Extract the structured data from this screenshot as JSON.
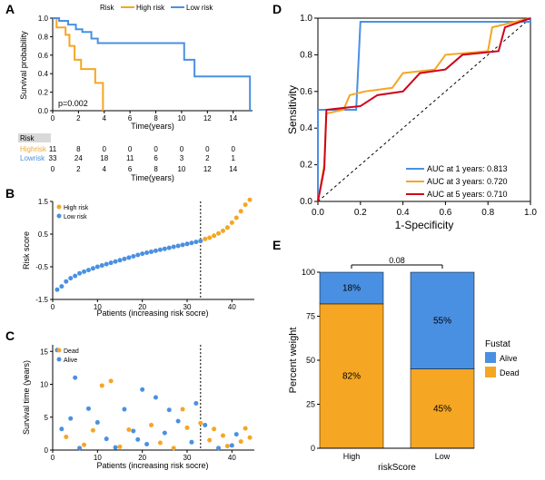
{
  "colors": {
    "high_risk": "#f5a623",
    "low_risk": "#4a90e2",
    "auc1": "#4a90e2",
    "auc3": "#f5a623",
    "auc5": "#d0021b",
    "alive": "#4a90e2",
    "dead": "#f5a623",
    "text": "#000000",
    "grid": "#bfbfbf"
  },
  "panelA": {
    "label": "A",
    "legend_title": "Risk",
    "legend_items": [
      {
        "label": "High risk",
        "color": "#f5a623"
      },
      {
        "label": "Low risk",
        "color": "#4a90e2"
      }
    ],
    "ylabel": "Survival probability",
    "xlabel": "Time(years)",
    "x_ticks": [
      0,
      2,
      4,
      6,
      8,
      10,
      12,
      14
    ],
    "y_ticks": [
      0.0,
      0.2,
      0.4,
      0.6,
      0.8,
      1.0
    ],
    "pvalue": "p=0.002",
    "high_risk_curve": [
      [
        0,
        1.0
      ],
      [
        0.3,
        0.9
      ],
      [
        1.0,
        0.82
      ],
      [
        1.3,
        0.7
      ],
      [
        1.7,
        0.55
      ],
      [
        2.2,
        0.45
      ],
      [
        3.2,
        0.45
      ],
      [
        3.3,
        0.3
      ],
      [
        3.8,
        0.3
      ],
      [
        3.9,
        0.0
      ]
    ],
    "low_risk_curve": [
      [
        0,
        1.0
      ],
      [
        0.5,
        0.97
      ],
      [
        1.2,
        0.93
      ],
      [
        1.8,
        0.88
      ],
      [
        2.3,
        0.85
      ],
      [
        3.0,
        0.78
      ],
      [
        3.5,
        0.73
      ],
      [
        5.0,
        0.73
      ],
      [
        6.0,
        0.73
      ],
      [
        8.0,
        0.73
      ],
      [
        9.0,
        0.73
      ],
      [
        10.0,
        0.73
      ],
      [
        10.2,
        0.55
      ],
      [
        11.0,
        0.37
      ],
      [
        14.0,
        0.37
      ],
      [
        15.0,
        0.37
      ],
      [
        15.3,
        0.0
      ]
    ],
    "risk_table": {
      "header": "Risk",
      "rows": [
        {
          "label": "Highrisk",
          "color": "#f5a623",
          "values": [
            11,
            8,
            0,
            0,
            0,
            0,
            0,
            0
          ]
        },
        {
          "label": "Lowrisk",
          "color": "#4a90e2",
          "values": [
            33,
            24,
            18,
            11,
            6,
            3,
            2,
            1
          ]
        }
      ],
      "time_row": [
        0,
        2,
        4,
        6,
        8,
        10,
        12,
        14
      ]
    }
  },
  "panelB": {
    "label": "B",
    "legend": [
      {
        "label": "High risk",
        "color": "#f5a623"
      },
      {
        "label": "Low risk",
        "color": "#4a90e2"
      }
    ],
    "ylabel": "Risk score",
    "xlabel": "Patients (increasing risk socre)",
    "x_ticks": [
      0,
      10,
      20,
      30,
      40
    ],
    "y_ticks": [
      -1.5,
      -0.5,
      0.5,
      1.5
    ],
    "cutoff": 33,
    "low_points": [
      [
        1,
        -1.2
      ],
      [
        2,
        -1.1
      ],
      [
        3,
        -0.95
      ],
      [
        4,
        -0.85
      ],
      [
        5,
        -0.78
      ],
      [
        6,
        -0.7
      ],
      [
        7,
        -0.65
      ],
      [
        8,
        -0.6
      ],
      [
        9,
        -0.55
      ],
      [
        10,
        -0.5
      ],
      [
        11,
        -0.46
      ],
      [
        12,
        -0.42
      ],
      [
        13,
        -0.38
      ],
      [
        14,
        -0.34
      ],
      [
        15,
        -0.3
      ],
      [
        16,
        -0.26
      ],
      [
        17,
        -0.22
      ],
      [
        18,
        -0.18
      ],
      [
        19,
        -0.14
      ],
      [
        20,
        -0.1
      ],
      [
        21,
        -0.07
      ],
      [
        22,
        -0.04
      ],
      [
        23,
        -0.01
      ],
      [
        24,
        0.02
      ],
      [
        25,
        0.05
      ],
      [
        26,
        0.08
      ],
      [
        27,
        0.11
      ],
      [
        28,
        0.14
      ],
      [
        29,
        0.17
      ],
      [
        30,
        0.2
      ],
      [
        31,
        0.23
      ],
      [
        32,
        0.26
      ],
      [
        33,
        0.29
      ]
    ],
    "high_points": [
      [
        34,
        0.35
      ],
      [
        35,
        0.39
      ],
      [
        36,
        0.45
      ],
      [
        37,
        0.52
      ],
      [
        38,
        0.6
      ],
      [
        39,
        0.7
      ],
      [
        40,
        0.85
      ],
      [
        41,
        1.0
      ],
      [
        42,
        1.2
      ],
      [
        43,
        1.4
      ],
      [
        44,
        1.55
      ]
    ]
  },
  "panelC": {
    "label": "C",
    "legend": [
      {
        "label": "Dead",
        "color": "#f5a623"
      },
      {
        "label": "Alive",
        "color": "#4a90e2"
      }
    ],
    "ylabel": "Survival time (years)",
    "xlabel": "Patients (increasing risk socre)",
    "x_ticks": [
      0,
      10,
      20,
      30,
      40
    ],
    "y_ticks": [
      0,
      5,
      10,
      15
    ],
    "cutoff": 33,
    "dead_points": [
      [
        3,
        2
      ],
      [
        7,
        0.8
      ],
      [
        9,
        3
      ],
      [
        11,
        9.8
      ],
      [
        13,
        10.5
      ],
      [
        15,
        0.5
      ],
      [
        17,
        3.1
      ],
      [
        22,
        3.8
      ],
      [
        24,
        1.1
      ],
      [
        27,
        0.3
      ],
      [
        29,
        6.2
      ],
      [
        30,
        3.4
      ],
      [
        33,
        4.1
      ],
      [
        35,
        1.5
      ],
      [
        36,
        3.2
      ],
      [
        38,
        2.2
      ],
      [
        39,
        0.6
      ],
      [
        42,
        1.3
      ],
      [
        43,
        3.3
      ],
      [
        44,
        1.9
      ]
    ],
    "alive_points": [
      [
        1,
        15.2
      ],
      [
        2,
        3.2
      ],
      [
        4,
        4.8
      ],
      [
        5,
        11
      ],
      [
        6,
        0.3
      ],
      [
        8,
        6.3
      ],
      [
        10,
        4.2
      ],
      [
        12,
        1.7
      ],
      [
        14,
        0.4
      ],
      [
        16,
        6.2
      ],
      [
        18,
        2.9
      ],
      [
        19,
        1.6
      ],
      [
        20,
        9.2
      ],
      [
        21,
        0.9
      ],
      [
        23,
        8
      ],
      [
        25,
        2.6
      ],
      [
        26,
        6.1
      ],
      [
        28,
        4.4
      ],
      [
        31,
        1.2
      ],
      [
        32,
        7.1
      ],
      [
        34,
        3.8
      ],
      [
        37,
        0.3
      ],
      [
        40,
        0.7
      ],
      [
        41,
        2.4
      ]
    ]
  },
  "panelD": {
    "label": "D",
    "ylabel": "Sensitivity",
    "xlabel": "1-Specificity",
    "x_ticks": [
      0.0,
      0.2,
      0.4,
      0.6,
      0.8,
      1.0
    ],
    "y_ticks": [
      0.0,
      0.2,
      0.4,
      0.6,
      0.8,
      1.0
    ],
    "legend": [
      {
        "label": "AUC at 1 years: 0.813",
        "color": "#4a90e2"
      },
      {
        "label": "AUC at 3 years: 0.720",
        "color": "#f5a623"
      },
      {
        "label": "AUC at 5 years: 0.710",
        "color": "#d0021b"
      }
    ],
    "roc1": [
      [
        0,
        0
      ],
      [
        0,
        0.5
      ],
      [
        0.18,
        0.5
      ],
      [
        0.2,
        0.98
      ],
      [
        1.0,
        0.98
      ],
      [
        1.0,
        1.0
      ]
    ],
    "roc3": [
      [
        0,
        0
      ],
      [
        0.03,
        0.2
      ],
      [
        0.04,
        0.48
      ],
      [
        0.12,
        0.5
      ],
      [
        0.15,
        0.58
      ],
      [
        0.22,
        0.6
      ],
      [
        0.35,
        0.62
      ],
      [
        0.4,
        0.7
      ],
      [
        0.55,
        0.72
      ],
      [
        0.6,
        0.8
      ],
      [
        0.8,
        0.82
      ],
      [
        0.82,
        0.95
      ],
      [
        1.0,
        1.0
      ]
    ],
    "roc5": [
      [
        0,
        0
      ],
      [
        0.03,
        0.18
      ],
      [
        0.04,
        0.5
      ],
      [
        0.2,
        0.52
      ],
      [
        0.28,
        0.58
      ],
      [
        0.4,
        0.6
      ],
      [
        0.48,
        0.7
      ],
      [
        0.6,
        0.72
      ],
      [
        0.68,
        0.8
      ],
      [
        0.85,
        0.82
      ],
      [
        0.88,
        0.95
      ],
      [
        1.0,
        1.0
      ]
    ]
  },
  "panelE": {
    "label": "E",
    "ylabel": "Percent weight",
    "xlabel": "riskScore",
    "x_categories": [
      "High",
      "Low"
    ],
    "y_ticks": [
      0,
      25,
      50,
      75,
      100
    ],
    "pvalue": "0.08",
    "legend_title": "Fustat",
    "legend": [
      {
        "label": "Alive",
        "color": "#4a90e2"
      },
      {
        "label": "Dead",
        "color": "#f5a623"
      }
    ],
    "bars": [
      {
        "cat": "High",
        "alive": 18,
        "dead": 82,
        "alive_label": "18%",
        "dead_label": "82%"
      },
      {
        "cat": "Low",
        "alive": 55,
        "dead": 45,
        "alive_label": "55%",
        "dead_label": "45%"
      }
    ]
  }
}
